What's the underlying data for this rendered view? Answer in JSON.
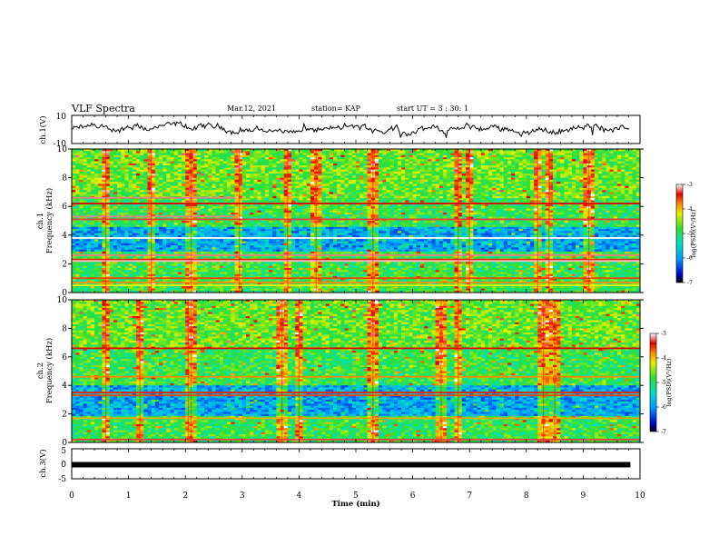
{
  "header": {
    "title": "VLF Spectra",
    "date": "Mar.12, 2021",
    "station": "station= KAP",
    "start": "start  UT =   3 : 30: 1"
  },
  "chart_data": [
    {
      "type": "line",
      "panel": "ch1-waveform",
      "ylabel": "ch.1(V)",
      "ylim": [
        -10,
        10
      ],
      "yticks": [
        "10",
        "-10"
      ],
      "xlim": [
        0,
        10
      ],
      "x_coverage_end": 9.83,
      "description_values": "noisy waveform fluctuating roughly between -8 and 8 V",
      "color": "#000000"
    },
    {
      "type": "heatmap",
      "panel": "ch1-spectrogram",
      "ylabel": "ch.1\nFrequency (kHz)",
      "ylabel_line1": "ch.1",
      "ylabel_line2": "Frequency (kHz)",
      "ylim": [
        0,
        10
      ],
      "yticks": [
        "0",
        "2",
        "4",
        "6",
        "8",
        "10"
      ],
      "xlim": [
        0,
        10
      ],
      "colorbar": {
        "label": "log(PSD)(V²/Hz)",
        "range": [
          -7,
          -3
        ],
        "ticks": [
          "-3",
          "-4",
          "-5",
          "-6",
          "-7"
        ]
      },
      "bands": [
        {
          "f": 6.6,
          "level": -3.2,
          "until": 2.9
        },
        {
          "f": 6.2,
          "level": -3.4
        },
        {
          "f": 5.3,
          "level": -3.2,
          "until": 2.9
        },
        {
          "f": 5.1,
          "level": -3.3
        },
        {
          "f": 3.8,
          "level": -3.0
        },
        {
          "f": 2.6,
          "level": -3.2
        },
        {
          "f": 2.3,
          "level": -3.5
        },
        {
          "f": 2.2,
          "level": -3.1
        },
        {
          "f": 1.0,
          "level": -3.6
        },
        {
          "f": 0.7,
          "level": -3.8
        },
        {
          "f": 0.5,
          "level": -4.2
        }
      ],
      "low_psd_band_khz": [
        2.8,
        4.6
      ],
      "vertical_bursts_min": [
        0.6,
        1.4,
        2.1,
        2.95,
        3.8,
        4.3,
        5.3,
        6.8,
        7.0,
        8.2,
        8.4,
        9.1
      ]
    },
    {
      "type": "heatmap",
      "panel": "ch2-spectrogram",
      "ylabel_line1": "ch.2",
      "ylabel_line2": "Frequency (kHz)",
      "ylim": [
        0,
        10
      ],
      "yticks": [
        "0",
        "2",
        "4",
        "6",
        "8",
        "10"
      ],
      "xlim": [
        0,
        10
      ],
      "colorbar": {
        "label": "log(PSD)(V²/Hz)",
        "range": [
          -7,
          -3
        ],
        "ticks": [
          "-3",
          "-4",
          "-5",
          "-6",
          "-7"
        ]
      },
      "bands": [
        {
          "f": 6.6,
          "level": -3.4
        },
        {
          "f": 4.6,
          "level": -3.8
        },
        {
          "f": 3.5,
          "level": -3.5
        },
        {
          "f": 3.3,
          "level": -3.6
        },
        {
          "f": 1.7,
          "level": -3.9
        },
        {
          "f": 0.2,
          "level": -3.3
        }
      ],
      "low_psd_band_khz": [
        1.8,
        4.0
      ],
      "vertical_bursts_min": [
        0.6,
        1.2,
        2.05,
        2.1,
        3.7,
        4.0,
        5.3,
        6.5,
        6.8,
        8.3,
        8.5
      ]
    },
    {
      "type": "line",
      "panel": "ch3-waveform",
      "ylabel": "ch.3(V)",
      "ylim": [
        -5,
        5
      ],
      "yticks": [
        "5",
        "0",
        "-5"
      ],
      "xlim": [
        0,
        10
      ],
      "value_v": -0.3,
      "x_coverage_end": 9.83,
      "color": "#000000"
    }
  ],
  "xaxis": {
    "label": "Time (min)",
    "ticks": [
      "0",
      "1",
      "2",
      "3",
      "4",
      "5",
      "6",
      "7",
      "8",
      "9",
      "10"
    ]
  }
}
